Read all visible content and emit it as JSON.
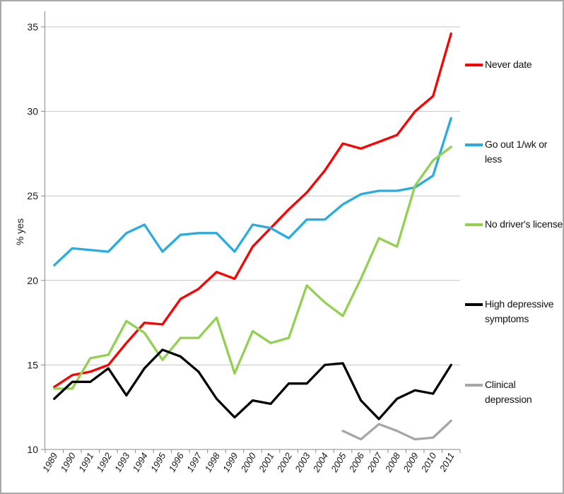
{
  "chart_data": {
    "type": "line",
    "title": "",
    "ylabel": "% yes",
    "ylim": [
      10,
      35
    ],
    "yticks": [
      10,
      15,
      20,
      25,
      30,
      35
    ],
    "grid": true,
    "legend_position": "right",
    "x": [
      1989,
      1990,
      1991,
      1992,
      1993,
      1994,
      1995,
      1996,
      1997,
      1998,
      1999,
      2000,
      2001,
      2002,
      2003,
      2004,
      2005,
      2006,
      2007,
      2008,
      2009,
      2010,
      2011
    ],
    "series": [
      {
        "name": "Never date",
        "color": "#FF0000",
        "values": [
          13.7,
          14.4,
          14.6,
          15.0,
          16.3,
          17.5,
          17.4,
          18.9,
          19.5,
          20.5,
          20.1,
          22.0,
          23.1,
          24.2,
          25.2,
          26.5,
          28.1,
          27.8,
          28.2,
          28.6,
          30.0,
          30.9,
          34.6
        ]
      },
      {
        "name": "Go out 1/wk or less",
        "color": "#29ABE2",
        "values": [
          20.9,
          21.9,
          21.8,
          21.7,
          22.8,
          23.3,
          21.7,
          22.7,
          22.8,
          22.8,
          21.7,
          23.3,
          23.1,
          22.5,
          23.6,
          23.6,
          24.5,
          25.1,
          25.3,
          25.3,
          25.5,
          26.2,
          29.6
        ]
      },
      {
        "name": "No driver's license",
        "color": "#92D050",
        "values": [
          13.6,
          13.6,
          15.4,
          15.6,
          17.6,
          16.9,
          15.3,
          16.6,
          16.6,
          17.8,
          14.5,
          17.0,
          16.3,
          16.6,
          19.7,
          18.7,
          17.9,
          20.1,
          22.5,
          22.0,
          25.6,
          27.1,
          27.9
        ]
      },
      {
        "name": "High depressive symptoms",
        "color": "#000000",
        "values": [
          13.0,
          14.0,
          14.0,
          14.8,
          13.2,
          14.8,
          15.9,
          15.5,
          14.6,
          13.0,
          11.9,
          12.9,
          12.7,
          13.9,
          13.9,
          15.0,
          15.1,
          12.9,
          11.8,
          13.0,
          13.5,
          13.3,
          15.0
        ]
      },
      {
        "name": "Clinical depression",
        "color": "#A6A6A6",
        "values": [
          null,
          null,
          null,
          null,
          null,
          null,
          null,
          null,
          null,
          null,
          null,
          null,
          null,
          null,
          null,
          null,
          11.1,
          10.6,
          11.5,
          11.1,
          10.6,
          10.7,
          11.7
        ]
      }
    ]
  }
}
